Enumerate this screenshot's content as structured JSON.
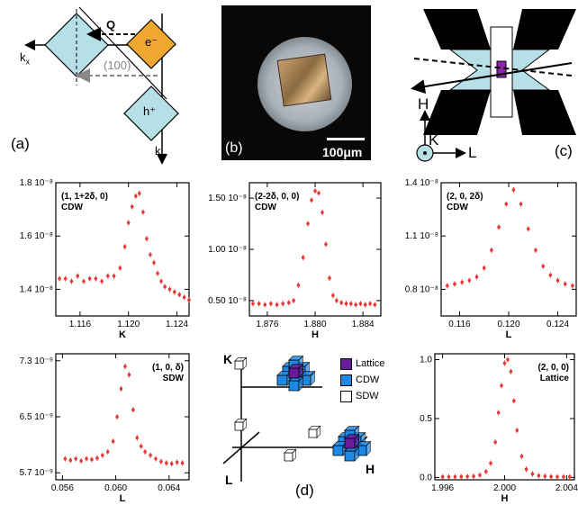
{
  "panel_labels": {
    "a": "(a)",
    "b": "(b)",
    "c": "(c)",
    "d": "(d)"
  },
  "panel_a": {
    "kx": "k",
    "kx_sub": "x",
    "ky": "k",
    "ky_sub": "y",
    "Q": "Q",
    "e": "e⁻",
    "h": "h⁺",
    "hkl": "(100)"
  },
  "panel_b": {
    "scale_label": "100μm"
  },
  "panel_c": {
    "H": "H",
    "K": "K",
    "L": "L"
  },
  "panel_d": {
    "K": "K",
    "L": "L",
    "H": "H",
    "legend": [
      {
        "label": "Lattice",
        "color": "#6a1b9a"
      },
      {
        "label": "CDW",
        "color": "#1e88e5"
      },
      {
        "label": "SDW",
        "color": "#ffffff"
      }
    ]
  },
  "colors": {
    "points": "#e53935",
    "lattice": "#6a1b9a",
    "cdw": "#1e88e5",
    "box": "#b7e0e6",
    "box_orange": "#f0a830"
  },
  "chart_data": [
    {
      "type": "scatter",
      "annotation": [
        "(1, 1+2δ, 0)",
        "CDW"
      ],
      "xlabel": "K",
      "xlim": [
        1.114,
        1.125
      ],
      "ylim": [
        1.3e-08,
        1.8e-08
      ],
      "xticks": [
        1.116,
        1.12,
        1.124
      ],
      "xtick_labels": [
        "1.116",
        "1.120",
        "1.124"
      ],
      "yticks": [
        1.4e-08,
        1.6e-08,
        1.8e-08
      ],
      "ytick_labels": [
        "1.4 10⁻⁸",
        "1.6 10⁻⁸",
        "1.8 10⁻⁸"
      ],
      "x": [
        1.1143,
        1.1148,
        1.1153,
        1.1158,
        1.1163,
        1.1168,
        1.1173,
        1.1178,
        1.1183,
        1.1188,
        1.1193,
        1.1197,
        1.12,
        1.1203,
        1.1206,
        1.1209,
        1.1212,
        1.1215,
        1.1218,
        1.1221,
        1.1224,
        1.1227,
        1.123,
        1.1234,
        1.1238,
        1.1242,
        1.1246,
        1.125
      ],
      "y": [
        1.44e-08,
        1.44e-08,
        1.43e-08,
        1.45e-08,
        1.43e-08,
        1.44e-08,
        1.44e-08,
        1.43e-08,
        1.45e-08,
        1.45e-08,
        1.48e-08,
        1.56e-08,
        1.65e-08,
        1.71e-08,
        1.75e-08,
        1.76e-08,
        1.69e-08,
        1.59e-08,
        1.53e-08,
        1.5e-08,
        1.46e-08,
        1.43e-08,
        1.41e-08,
        1.4e-08,
        1.39e-08,
        1.38e-08,
        1.37e-08,
        1.36e-08
      ]
    },
    {
      "type": "scatter",
      "annotation": [
        "(2-2δ, 0, 0)",
        "CDW"
      ],
      "xlabel": "H",
      "xlim": [
        1.8745,
        1.8855
      ],
      "ylim": [
        3.5e-09,
        1.65e-08
      ],
      "xticks": [
        1.876,
        1.88,
        1.884
      ],
      "xtick_labels": [
        "1.876",
        "1.880",
        "1.884"
      ],
      "yticks": [
        5e-09,
        1e-08,
        1.5e-08
      ],
      "ytick_labels": [
        "0.50 10⁻⁸",
        "1.00 10⁻⁸",
        "1.50 10⁻⁸"
      ],
      "x": [
        1.8748,
        1.8753,
        1.8758,
        1.8763,
        1.8768,
        1.8773,
        1.8778,
        1.8782,
        1.8786,
        1.879,
        1.8794,
        1.8797,
        1.88,
        1.8803,
        1.8806,
        1.8809,
        1.8812,
        1.8815,
        1.8818,
        1.8822,
        1.8826,
        1.883,
        1.8834,
        1.8838,
        1.8842,
        1.8846,
        1.885
      ],
      "y": [
        4.7e-09,
        4.7e-09,
        4.6e-09,
        4.7e-09,
        4.6e-09,
        4.7e-09,
        4.8e-09,
        5e-09,
        6.5e-09,
        9.2e-09,
        1.25e-08,
        1.48e-08,
        1.57e-08,
        1.55e-08,
        1.36e-08,
        1.05e-08,
        7.2e-09,
        5.5e-09,
        5e-09,
        4.8e-09,
        4.7e-09,
        4.7e-09,
        4.6e-09,
        4.7e-09,
        4.6e-09,
        4.7e-09,
        4.6e-09
      ]
    },
    {
      "type": "scatter",
      "annotation": [
        "(2, 0, 2δ)",
        "CDW"
      ],
      "xlabel": "L",
      "xlim": [
        0.1145,
        0.1255
      ],
      "ylim": [
        6.5e-09,
        1.4e-08
      ],
      "xticks": [
        0.116,
        0.12,
        0.124
      ],
      "xtick_labels": [
        "0.116",
        "0.120",
        "0.124"
      ],
      "yticks": [
        8e-09,
        1.1e-08,
        1.4e-08
      ],
      "ytick_labels": [
        "0.8 10⁻⁸",
        "1.1 10⁻⁸",
        "1.4 10⁻⁸"
      ],
      "x": [
        0.115,
        0.1156,
        0.1162,
        0.1168,
        0.1174,
        0.118,
        0.1186,
        0.1192,
        0.1198,
        0.1204,
        0.121,
        0.1216,
        0.1222,
        0.1228,
        0.1234,
        0.124,
        0.1246,
        0.1252
      ],
      "y": [
        8.2e-09,
        8.3e-09,
        8.4e-09,
        8.5e-09,
        8.7e-09,
        9.2e-09,
        1.02e-08,
        1.15e-08,
        1.28e-08,
        1.36e-08,
        1.28e-08,
        1.14e-08,
        1.02e-08,
        9.3e-09,
        8.8e-09,
        8.5e-09,
        8.3e-09,
        8.2e-09
      ]
    },
    {
      "type": "scatter",
      "annotation": [
        "(1, 0, δ)",
        "SDW"
      ],
      "xlabel": "L",
      "xlim": [
        0.0555,
        0.0655
      ],
      "ylim": [
        5.6e-09,
        7.4e-09
      ],
      "xticks": [
        0.056,
        0.06,
        0.064
      ],
      "xtick_labels": [
        "0.056",
        "0.060",
        "0.064"
      ],
      "yticks": [
        5.7e-09,
        6.5e-09,
        7.3e-09
      ],
      "ytick_labels": [
        "5.7 10⁻⁹",
        "6.5 10⁻⁹",
        "7.3 10⁻⁹"
      ],
      "x": [
        0.0562,
        0.0566,
        0.057,
        0.0574,
        0.0578,
        0.0582,
        0.0586,
        0.059,
        0.0594,
        0.0598,
        0.0601,
        0.0604,
        0.0607,
        0.061,
        0.0613,
        0.0616,
        0.0619,
        0.0622,
        0.0626,
        0.063,
        0.0634,
        0.0638,
        0.0642,
        0.0646,
        0.065
      ],
      "y": [
        5.9e-09,
        5.88e-09,
        5.9e-09,
        5.87e-09,
        5.9e-09,
        5.89e-09,
        5.91e-09,
        5.95e-09,
        6e-09,
        6.15e-09,
        6.5e-09,
        6.9e-09,
        7.22e-09,
        7.1e-09,
        6.6e-09,
        6.2e-09,
        6.08e-09,
        6e-09,
        5.95e-09,
        5.9e-09,
        5.86e-09,
        5.84e-09,
        5.83e-09,
        5.85e-09,
        5.84e-09
      ]
    },
    {
      "type": "scatter",
      "annotation": [
        "(2, 0, 0)",
        "Lattice"
      ],
      "xlabel": "H",
      "xlim": [
        1.9955,
        2.0045
      ],
      "ylim": [
        -0.02,
        1.05
      ],
      "xticks": [
        1.996,
        2.0,
        2.004
      ],
      "xtick_labels": [
        "1.996",
        "2.000",
        "2.004"
      ],
      "yticks": [
        0.0,
        0.5,
        1.0
      ],
      "ytick_labels": [
        "0.0",
        "0.5",
        "1.0"
      ],
      "x": [
        1.996,
        1.9964,
        1.9968,
        1.9972,
        1.9976,
        1.998,
        1.9984,
        1.9988,
        1.9991,
        1.9994,
        1.9996,
        1.9998,
        2.0,
        2.0002,
        2.0004,
        2.0006,
        2.0008,
        2.0011,
        2.0014,
        2.0018,
        2.0022,
        2.0026,
        2.003,
        2.0034,
        2.0038,
        2.0042
      ],
      "y": [
        0.005,
        0.005,
        0.005,
        0.006,
        0.008,
        0.01,
        0.02,
        0.05,
        0.12,
        0.3,
        0.55,
        0.78,
        0.97,
        1.0,
        0.9,
        0.65,
        0.4,
        0.18,
        0.07,
        0.03,
        0.015,
        0.01,
        0.007,
        0.005,
        0.005,
        0.005
      ]
    }
  ]
}
